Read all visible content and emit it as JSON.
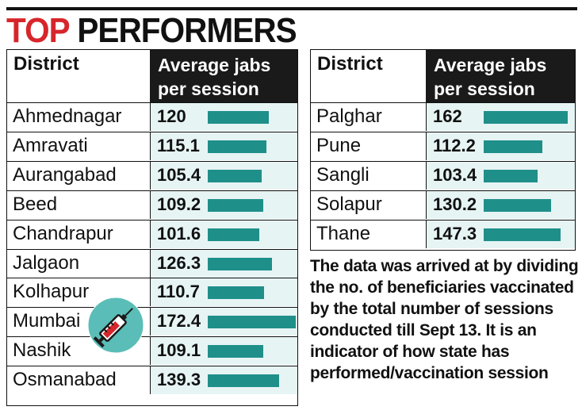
{
  "title": {
    "part1": "TOP",
    "part2": "PERFORMERS"
  },
  "colors": {
    "title_red": "#d7262b",
    "bar": "#1f8f8a",
    "value_bg": "#e6f4f4",
    "header_bg": "#1a1a1a"
  },
  "chart_data": [
    {
      "type": "table",
      "columns": [
        "District",
        "Average jabs per session"
      ],
      "header": {
        "district": "District",
        "avg_line1": "Average jabs",
        "avg_line2": "per session"
      },
      "categories": [
        "Ahmednagar",
        "Amravati",
        "Aurangabad",
        "Beed",
        "Chandrapur",
        "Jalgaon",
        "Kolhapur",
        "Mumbai",
        "Nashik",
        "Osmanabad"
      ],
      "values": [
        120,
        115.1,
        105.4,
        109.2,
        101.6,
        126.3,
        110.7,
        172.4,
        109.1,
        139.3
      ],
      "labels": [
        "120",
        "115.1",
        "105.4",
        "109.2",
        "101.6",
        "126.3",
        "110.7",
        "172.4",
        "109.1",
        "139.3"
      ]
    },
    {
      "type": "table",
      "columns": [
        "District",
        "Average jabs per session"
      ],
      "header": {
        "district": "District",
        "avg_line1": "Average jabs",
        "avg_line2": "per session"
      },
      "categories": [
        "Palghar",
        "Pune",
        "Sangli",
        "Solapur",
        "Thane"
      ],
      "values": [
        162,
        112.2,
        103.4,
        130.2,
        147.3
      ],
      "labels": [
        "162",
        "112.2",
        "103.4",
        "130.2",
        "147.3"
      ]
    }
  ],
  "icons": {
    "syringe": "syringe-icon"
  },
  "note": "The data was arrived at by dividing the no. of beneficiaries vaccinated by the total number of sessions conducted till Sept 13. It is an indicator of how state has performed/vaccination session"
}
